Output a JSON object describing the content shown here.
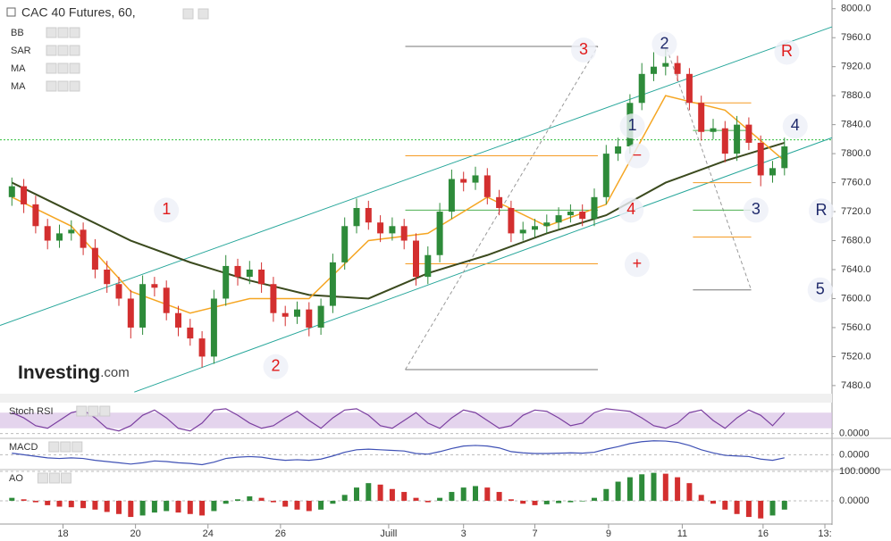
{
  "chart_data": {
    "type": "candlestick",
    "title": "CAC 40 Futures, 60,",
    "indicators": [
      "BB",
      "SAR",
      "MA",
      "MA"
    ],
    "watermark": {
      "brand": "Investing",
      "suffix": ".com"
    },
    "xlim": [
      -1,
      69
    ],
    "xticks": [
      {
        "value": 4.3,
        "label": "18"
      },
      {
        "value": 10.4,
        "label": "20"
      },
      {
        "value": 16.5,
        "label": "24"
      },
      {
        "value": 22.6,
        "label": "26"
      },
      {
        "value": 31.7,
        "label": "Juill"
      },
      {
        "value": 38,
        "label": "3"
      },
      {
        "value": 44,
        "label": "7"
      },
      {
        "value": 50.2,
        "label": "9"
      },
      {
        "value": 56.4,
        "label": "11"
      },
      {
        "value": 63.2,
        "label": "16"
      },
      {
        "value": 68.4,
        "label": "13:"
      }
    ],
    "ylim": [
      7470,
      8012
    ],
    "yticks": [
      {
        "value": 8000,
        "label": "8000.0"
      },
      {
        "value": 7960,
        "label": "7960.0"
      },
      {
        "value": 7920,
        "label": "7920.0"
      },
      {
        "value": 7880,
        "label": "7880.0"
      },
      {
        "value": 7840,
        "label": "7840.0"
      },
      {
        "value": 7800,
        "label": "7800.0"
      },
      {
        "value": 7760,
        "label": "7760.0"
      },
      {
        "value": 7720,
        "label": "7720.0"
      },
      {
        "value": 7680,
        "label": "7680.0"
      },
      {
        "value": 7640,
        "label": "7640.0"
      },
      {
        "value": 7600,
        "label": "7600.0"
      },
      {
        "value": 7560,
        "label": "7560.0"
      },
      {
        "value": 7520,
        "label": "7520.0"
      },
      {
        "value": 7480,
        "label": "7480.0"
      }
    ],
    "colors": {
      "up": "#2e8b3a",
      "down": "#d32f2f"
    },
    "open": [
      7740,
      7755,
      7730,
      7700,
      7680,
      7690,
      7695,
      7670,
      7640,
      7620,
      7600,
      7560,
      7620,
      7615,
      7580,
      7560,
      7545,
      7520,
      7600,
      7645,
      7630,
      7640,
      7620,
      7580,
      7575,
      7585,
      7560,
      7590,
      7650,
      7700,
      7725,
      7705,
      7690,
      7700,
      7680,
      7630,
      7660,
      7720,
      7765,
      7760,
      7770,
      7740,
      7725,
      7690,
      7695,
      7700,
      7705,
      7715,
      7720,
      7710,
      7740,
      7800,
      7810,
      7870,
      7910,
      7920,
      7925,
      7910,
      7870,
      7830,
      7835,
      7800,
      7840,
      7815,
      7770,
      7780
    ],
    "high": [
      7767,
      7765,
      7742,
      7710,
      7702,
      7708,
      7705,
      7682,
      7652,
      7630,
      7612,
      7632,
      7630,
      7625,
      7590,
      7572,
      7555,
      7612,
      7660,
      7655,
      7652,
      7650,
      7630,
      7590,
      7596,
      7595,
      7600,
      7662,
      7712,
      7738,
      7735,
      7715,
      7712,
      7710,
      7690,
      7672,
      7732,
      7778,
      7775,
      7782,
      7780,
      7750,
      7735,
      7706,
      7710,
      7716,
      7726,
      7730,
      7730,
      7752,
      7812,
      7822,
      7882,
      7925,
      7940,
      7945,
      7935,
      7918,
      7880,
      7848,
      7845,
      7852,
      7850,
      7825,
      7790,
      7822
    ],
    "low": [
      7728,
      7718,
      7690,
      7668,
      7670,
      7680,
      7660,
      7628,
      7608,
      7590,
      7545,
      7550,
      7603,
      7570,
      7548,
      7535,
      7505,
      7510,
      7590,
      7618,
      7620,
      7608,
      7568,
      7562,
      7565,
      7548,
      7550,
      7580,
      7640,
      7690,
      7695,
      7678,
      7680,
      7668,
      7618,
      7620,
      7650,
      7710,
      7748,
      7750,
      7730,
      7715,
      7678,
      7680,
      7685,
      7690,
      7695,
      7705,
      7700,
      7700,
      7730,
      7790,
      7800,
      7860,
      7900,
      7908,
      7900,
      7860,
      7818,
      7820,
      7788,
      7790,
      7805,
      7755,
      7760,
      7770
    ],
    "close": [
      7755,
      7730,
      7700,
      7680,
      7690,
      7695,
      7670,
      7640,
      7620,
      7600,
      7560,
      7620,
      7615,
      7580,
      7560,
      7545,
      7520,
      7600,
      7645,
      7630,
      7640,
      7620,
      7580,
      7575,
      7585,
      7560,
      7590,
      7650,
      7700,
      7725,
      7705,
      7690,
      7700,
      7680,
      7630,
      7660,
      7720,
      7765,
      7760,
      7770,
      7740,
      7725,
      7690,
      7695,
      7700,
      7705,
      7715,
      7720,
      7710,
      7740,
      7800,
      7810,
      7870,
      7910,
      7920,
      7925,
      7910,
      7870,
      7830,
      7835,
      7800,
      7840,
      7815,
      7770,
      7780,
      7810
    ],
    "overlays": [
      {
        "color": "#3b4a1e",
        "x": [
          0,
          5,
          10,
          15,
          20,
          25,
          30,
          35,
          40,
          45,
          50,
          55,
          60,
          65
        ],
        "values": [
          7760,
          7720,
          7680,
          7650,
          7625,
          7605,
          7600,
          7635,
          7660,
          7690,
          7715,
          7760,
          7790,
          7815
        ]
      },
      {
        "color": "#f5a623",
        "x": [
          0,
          5,
          10,
          15,
          20,
          25,
          30,
          35,
          40,
          45,
          50,
          55,
          60,
          65
        ],
        "values": [
          7740,
          7700,
          7610,
          7580,
          7600,
          7600,
          7680,
          7690,
          7740,
          7700,
          7730,
          7880,
          7860,
          7790
        ]
      }
    ],
    "price_line": 7819,
    "trendlines": [
      {
        "color": "#26a69a",
        "x": [
          -1,
          69
        ],
        "y": [
          7563,
          7975
        ]
      },
      {
        "color": "#26a69a",
        "x": [
          10.3,
          69
        ],
        "y": [
          7471,
          7822
        ]
      },
      {
        "color": "#999999",
        "dash": true,
        "x": [
          33.1,
          49.3
        ],
        "y": [
          7502,
          7948
        ]
      },
      {
        "color": "#999999",
        "dash": true,
        "x": [
          55.1,
          62.2
        ],
        "y": [
          7945,
          7612
        ]
      },
      {
        "color": "#777777",
        "x": [
          33.1,
          49.3
        ],
        "y": [
          7948,
          7948
        ]
      },
      {
        "color": "#777777",
        "x": [
          33.1,
          49.3
        ],
        "y": [
          7502,
          7502
        ]
      },
      {
        "color": "#777777",
        "x": [
          57.3,
          62.2
        ],
        "y": [
          7612,
          7612
        ]
      },
      {
        "color": "#f59b23",
        "x": [
          33.1,
          49.3
        ],
        "y": [
          7797,
          7797
        ]
      },
      {
        "color": "#f59b23",
        "x": [
          33.1,
          49.3
        ],
        "y": [
          7648,
          7648
        ]
      },
      {
        "color": "#4caf50",
        "x": [
          33.1,
          49.3
        ],
        "y": [
          7722,
          7722
        ]
      },
      {
        "color": "#f59b23",
        "x": [
          57.3,
          62.2
        ],
        "y": [
          7685,
          7685
        ]
      },
      {
        "color": "#4caf50",
        "x": [
          57.3,
          62.2
        ],
        "y": [
          7722,
          7722
        ]
      },
      {
        "color": "#f59b23",
        "x": [
          57.3,
          62.2
        ],
        "y": [
          7760,
          7760
        ]
      },
      {
        "color": "#4caf50",
        "x": [
          57.3,
          62.2
        ],
        "y": [
          7832,
          7832
        ]
      },
      {
        "color": "#f59b23",
        "x": [
          57.3,
          62.2
        ],
        "y": [
          7870,
          7870
        ]
      }
    ],
    "annotations": [
      {
        "text": "1",
        "x": 13.0,
        "y": 7722,
        "color": "#e01b1b"
      },
      {
        "text": "2",
        "x": 22.2,
        "y": 7506,
        "color": "#e01b1b"
      },
      {
        "text": "3",
        "x": 48.1,
        "y": 7943,
        "color": "#e01b1b"
      },
      {
        "text": "2",
        "x": 54.9,
        "y": 7951,
        "color": "#1f2a6b"
      },
      {
        "text": "1",
        "x": 52.2,
        "y": 7838,
        "color": "#1f2a6b"
      },
      {
        "text": "−",
        "x": 52.6,
        "y": 7797,
        "color": "#e01b1b"
      },
      {
        "text": "4",
        "x": 52.1,
        "y": 7722,
        "color": "#e01b1b"
      },
      {
        "text": "+",
        "x": 52.6,
        "y": 7647,
        "color": "#e01b1b"
      },
      {
        "text": "3",
        "x": 62.6,
        "y": 7722,
        "color": "#1f2a6b"
      },
      {
        "text": "4",
        "x": 65.9,
        "y": 7838,
        "color": "#1f2a6b"
      },
      {
        "text": "R",
        "x": 65.2,
        "y": 7940,
        "color": "#e01b1b"
      },
      {
        "text": "R",
        "x": 68.1,
        "y": 7721,
        "color": "#1f2a6b"
      },
      {
        "text": "5",
        "x": 68.0,
        "y": 7612,
        "color": "#1f2a6b"
      }
    ],
    "panels": [
      {
        "type": "line",
        "title": "Stoch RSI",
        "color": "#7b3fa0",
        "band": [
          20,
          80
        ],
        "ylim": [
          -15,
          115
        ],
        "yticks": [
          {
            "value": 0,
            "label": "0.0000"
          }
        ],
        "values": [
          80,
          60,
          30,
          20,
          50,
          80,
          90,
          60,
          20,
          10,
          30,
          70,
          90,
          60,
          20,
          10,
          40,
          90,
          95,
          70,
          40,
          20,
          30,
          60,
          85,
          50,
          20,
          60,
          90,
          95,
          70,
          30,
          20,
          50,
          80,
          40,
          20,
          60,
          90,
          80,
          50,
          20,
          30,
          70,
          90,
          85,
          60,
          30,
          40,
          80,
          95,
          90,
          85,
          60,
          30,
          20,
          40,
          80,
          90,
          50,
          20,
          60,
          90,
          70,
          30,
          80
        ]
      },
      {
        "type": "line",
        "title": "MACD",
        "color": "#3f51b5",
        "ylim": [
          -45,
          50
        ],
        "yticks": [
          {
            "value": 0,
            "label": "0.0000"
          }
        ],
        "values": [
          5,
          0,
          -5,
          -10,
          -12,
          -10,
          -12,
          -18,
          -22,
          -26,
          -30,
          -26,
          -20,
          -22,
          -26,
          -28,
          -32,
          -24,
          -12,
          -8,
          -6,
          -8,
          -14,
          -18,
          -16,
          -18,
          -14,
          -4,
          8,
          16,
          18,
          16,
          14,
          12,
          4,
          2,
          10,
          20,
          28,
          30,
          28,
          22,
          10,
          6,
          4,
          4,
          5,
          6,
          5,
          8,
          18,
          26,
          36,
          42,
          45,
          44,
          40,
          30,
          16,
          6,
          -2,
          -4,
          -6,
          -14,
          -18,
          -10
        ]
      },
      {
        "type": "histogram",
        "title": "AO",
        "ylim": [
          -73,
          103
        ],
        "yticks": [
          {
            "value": 100,
            "label": "100.0000"
          },
          {
            "value": 0,
            "label": "0.0000"
          }
        ],
        "values": [
          10,
          5,
          -5,
          -15,
          -20,
          -22,
          -25,
          -30,
          -38,
          -45,
          -55,
          -50,
          -40,
          -35,
          -40,
          -45,
          -50,
          -35,
          -10,
          5,
          15,
          10,
          -5,
          -20,
          -30,
          -35,
          -30,
          -10,
          20,
          45,
          60,
          55,
          40,
          30,
          10,
          -5,
          10,
          30,
          45,
          50,
          45,
          30,
          5,
          -10,
          -15,
          -12,
          -8,
          -5,
          -2,
          10,
          40,
          65,
          80,
          90,
          95,
          92,
          80,
          60,
          20,
          -10,
          -30,
          -45,
          -55,
          -60,
          -50,
          -30
        ]
      }
    ]
  }
}
